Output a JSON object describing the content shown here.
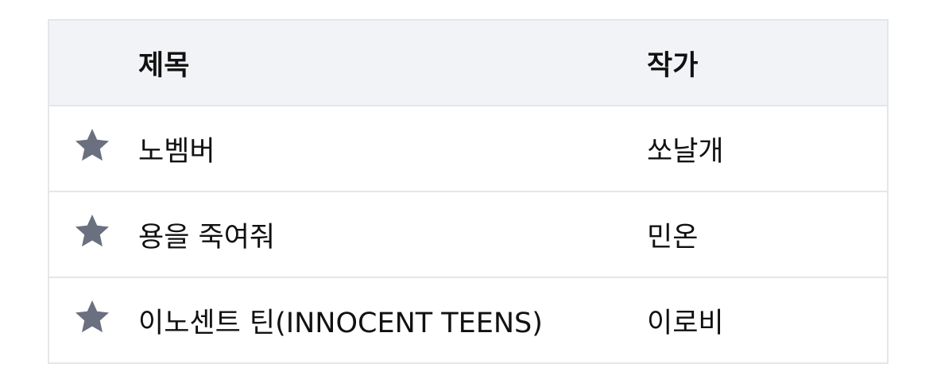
{
  "headers": {
    "title": "제목",
    "author": "작가"
  },
  "rows": [
    {
      "title": "노벰버",
      "author": "쏘날개",
      "icon": "star-icon"
    },
    {
      "title": "용을 죽여줘",
      "author": "민온",
      "icon": "star-icon"
    },
    {
      "title": "이노센트 틴(INNOCENT TEENS)",
      "author": "이로비",
      "icon": "star-icon"
    }
  ],
  "colors": {
    "star": "#6b7080",
    "header_bg": "#f2f3f6",
    "border": "#e5e6ea"
  }
}
